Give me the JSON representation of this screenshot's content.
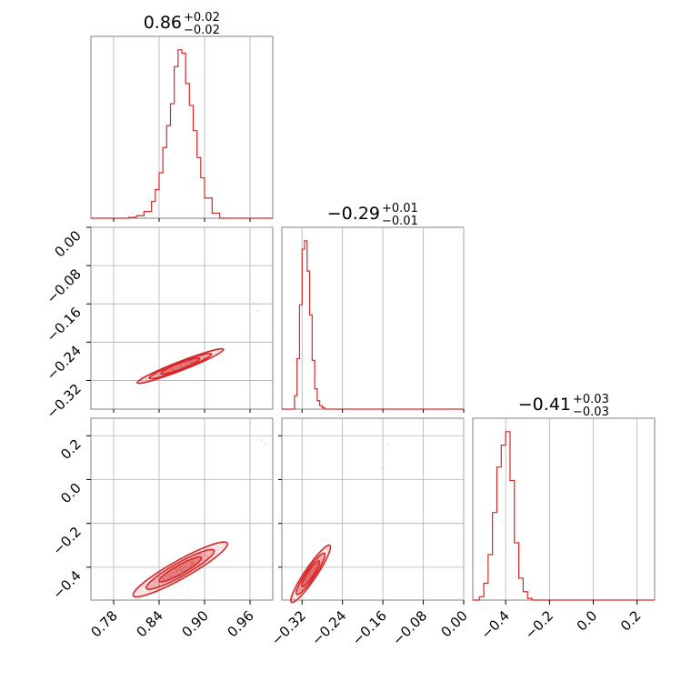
{
  "chart_data": {
    "type": "corner",
    "color": "#d62728",
    "grid": true,
    "parameters": [
      {
        "title": {
          "value": "0.86",
          "plus": "+0.02",
          "minus": "−0.02"
        }
      },
      {
        "title": {
          "value": "−0.29",
          "plus": "+0.01",
          "minus": "−0.01"
        }
      },
      {
        "title": {
          "value": "−0.41",
          "plus": "+0.03",
          "minus": "−0.03"
        }
      }
    ],
    "axes": {
      "p0": {
        "range": [
          0.75,
          0.99
        ],
        "ticks": [
          0.78,
          0.84,
          0.9,
          0.96
        ],
        "tick_labels": [
          "0.78",
          "0.84",
          "0.90",
          "0.96"
        ]
      },
      "p1": {
        "range": [
          -0.36,
          0.0
        ],
        "ticks": [
          -0.32,
          -0.24,
          -0.16,
          -0.08,
          0.0
        ],
        "tick_labels": [
          "−0.32",
          "−0.24",
          "−0.16",
          "−0.08",
          "0.00"
        ]
      },
      "p1_row": {
        "range": [
          -0.38,
          0.0
        ],
        "ticks": [
          0.0,
          -0.08,
          -0.16,
          -0.24,
          -0.32
        ],
        "tick_labels": [
          "0.00",
          "−0.08",
          "−0.16",
          "−0.24",
          "−0.32"
        ]
      },
      "p2": {
        "range": [
          -0.55,
          0.28
        ],
        "ticks": [
          -0.4,
          -0.2,
          0.0,
          0.2
        ],
        "tick_labels": [
          "−0.4",
          "−0.2",
          "0.0",
          "0.2"
        ]
      },
      "p2_row": {
        "range": [
          -0.55,
          0.28
        ],
        "ticks": [
          0.2,
          0.0,
          -0.2,
          -0.4
        ],
        "tick_labels": [
          "0.2",
          "0.0",
          "−0.2",
          "−0.4"
        ]
      }
    },
    "histograms": [
      {
        "param": "p0",
        "bin_edges": [
          0.8,
          0.81,
          0.82,
          0.83,
          0.835,
          0.84,
          0.845,
          0.85,
          0.855,
          0.86,
          0.865,
          0.87,
          0.875,
          0.88,
          0.885,
          0.89,
          0.895,
          0.9,
          0.91,
          0.92
        ],
        "counts": [
          0.005,
          0.015,
          0.04,
          0.1,
          0.17,
          0.27,
          0.42,
          0.55,
          0.68,
          0.9,
          1.0,
          0.98,
          0.8,
          0.67,
          0.52,
          0.36,
          0.24,
          0.12,
          0.03
        ],
        "ymax": 1.08
      },
      {
        "param": "p1",
        "bin_edges": [
          -0.335,
          -0.33,
          -0.325,
          -0.32,
          -0.315,
          -0.31,
          -0.305,
          -0.3,
          -0.295,
          -0.29,
          -0.285,
          -0.28,
          -0.275,
          -0.27,
          -0.265,
          -0.26
        ],
        "counts": [
          0.08,
          0.3,
          0.62,
          0.95,
          1.0,
          0.82,
          0.56,
          0.29,
          0.12,
          0.05,
          0.02,
          0.008,
          0.0,
          0.0,
          0.0
        ],
        "ymax": 1.08
      },
      {
        "param": "p2",
        "bin_edges": [
          -0.52,
          -0.5,
          -0.48,
          -0.46,
          -0.44,
          -0.42,
          -0.4,
          -0.38,
          -0.36,
          -0.34,
          -0.32,
          -0.3,
          -0.28
        ],
        "counts": [
          0.02,
          0.1,
          0.27,
          0.52,
          0.79,
          0.92,
          1.0,
          0.71,
          0.34,
          0.13,
          0.05,
          0.01
        ],
        "ymax": 1.08
      }
    ],
    "contour_panels": [
      {
        "x": "p0",
        "y": "p1",
        "center": [
          0.868,
          -0.29
        ],
        "major_end": [
          0.925,
          -0.255
        ],
        "width": [
          0.006,
          0.005,
          0.004
        ],
        "outliers": [
          [
            0.965,
            -0.16
          ],
          [
            0.97,
            -0.175
          ]
        ]
      },
      {
        "x": "p0",
        "y": "p2",
        "center": [
          0.868,
          -0.41
        ],
        "major_end": [
          0.93,
          -0.29
        ],
        "width": [
          0.012,
          0.009,
          0.006
        ],
        "outliers": [
          [
            0.975,
            0.18
          ],
          [
            0.98,
            0.16
          ]
        ]
      },
      {
        "x": "p1",
        "y": "p2",
        "center": [
          -0.303,
          -0.43
        ],
        "major_end": [
          -0.265,
          -0.3
        ],
        "width": [
          0.012,
          0.009,
          0.006
        ],
        "outliers": [
          [
            -0.15,
            0.16
          ],
          [
            -0.16,
            0.05
          ]
        ]
      }
    ]
  }
}
